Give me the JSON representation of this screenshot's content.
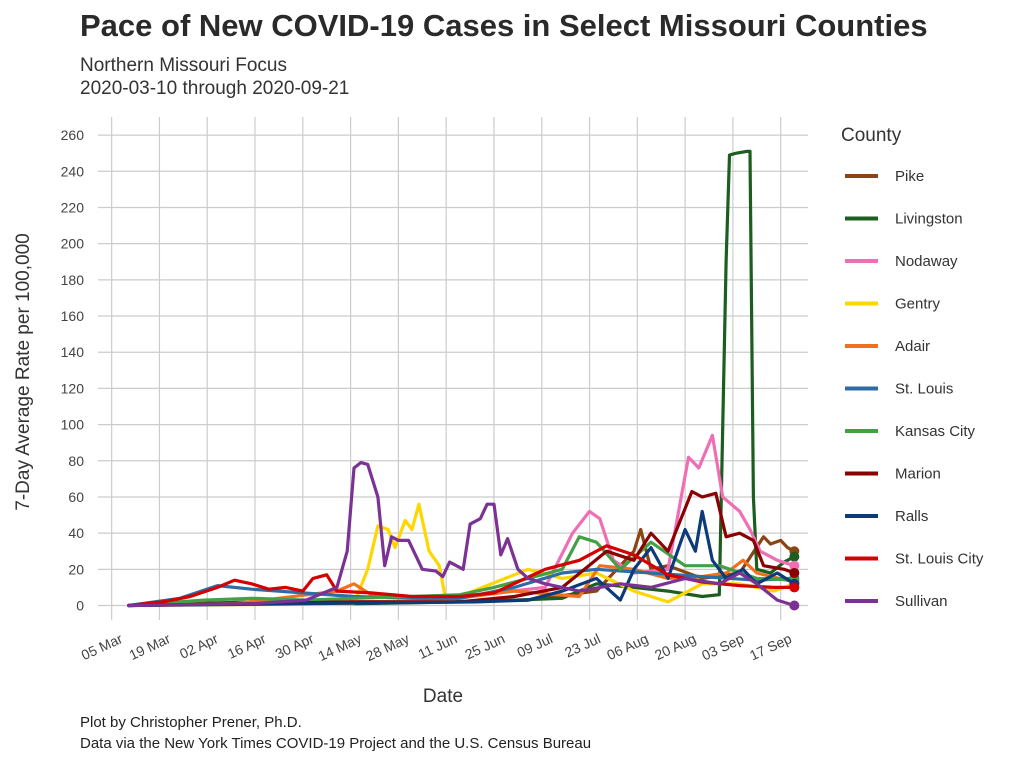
{
  "title": "Pace of New COVID-19 Cases in Select Missouri Counties",
  "subtitle": [
    "Northern Missouri Focus",
    "2020-03-10 through 2020-09-21"
  ],
  "caption": [
    "Plot by Christopher Prener, Ph.D.",
    "Data via the New York Times COVID-19 Project and the U.S. Census Bureau"
  ],
  "chart_data": {
    "type": "line",
    "xlabel": "Date",
    "ylabel": "7-Day Average Rate per 100,000",
    "xlim": [
      "2020-03-01",
      "2020-09-25"
    ],
    "ylim": [
      -8,
      270
    ],
    "yticks": [
      0,
      20,
      40,
      60,
      80,
      100,
      120,
      140,
      160,
      180,
      200,
      220,
      240,
      260
    ],
    "xticks": [
      {
        "date": "2020-03-05",
        "label": "05 Mar"
      },
      {
        "date": "2020-03-19",
        "label": "19 Mar"
      },
      {
        "date": "2020-04-02",
        "label": "02 Apr"
      },
      {
        "date": "2020-04-16",
        "label": "16 Apr"
      },
      {
        "date": "2020-04-30",
        "label": "30 Apr"
      },
      {
        "date": "2020-05-14",
        "label": "14 May"
      },
      {
        "date": "2020-05-28",
        "label": "28 May"
      },
      {
        "date": "2020-06-11",
        "label": "11 Jun"
      },
      {
        "date": "2020-06-25",
        "label": "25 Jun"
      },
      {
        "date": "2020-07-09",
        "label": "09 Jul"
      },
      {
        "date": "2020-07-23",
        "label": "23 Jul"
      },
      {
        "date": "2020-08-06",
        "label": "06 Aug"
      },
      {
        "date": "2020-08-20",
        "label": "20 Aug"
      },
      {
        "date": "2020-09-03",
        "label": "03 Sep"
      },
      {
        "date": "2020-09-17",
        "label": "17 Sep"
      }
    ],
    "grid": true,
    "legend": {
      "title": "County",
      "position": "right"
    },
    "series": [
      {
        "name": "Pike",
        "color": "#8B4513",
        "points": [
          [
            "2020-03-10",
            0
          ],
          [
            "2020-04-10",
            1
          ],
          [
            "2020-05-10",
            2
          ],
          [
            "2020-06-10",
            2
          ],
          [
            "2020-07-05",
            3
          ],
          [
            "2020-07-25",
            8
          ],
          [
            "2020-08-05",
            30
          ],
          [
            "2020-08-07",
            42
          ],
          [
            "2020-08-10",
            20
          ],
          [
            "2020-08-15",
            22
          ],
          [
            "2020-08-25",
            15
          ],
          [
            "2020-09-05",
            18
          ],
          [
            "2020-09-12",
            38
          ],
          [
            "2020-09-14",
            34
          ],
          [
            "2020-09-17",
            36
          ],
          [
            "2020-09-19",
            32
          ],
          [
            "2020-09-21",
            30
          ]
        ]
      },
      {
        "name": "Livingston",
        "color": "#1B5E20",
        "points": [
          [
            "2020-03-10",
            0
          ],
          [
            "2020-04-15",
            2
          ],
          [
            "2020-05-15",
            1
          ],
          [
            "2020-06-15",
            2
          ],
          [
            "2020-07-01",
            3
          ],
          [
            "2020-07-15",
            4
          ],
          [
            "2020-07-25",
            12
          ],
          [
            "2020-08-05",
            10
          ],
          [
            "2020-08-15",
            8
          ],
          [
            "2020-08-25",
            5
          ],
          [
            "2020-08-30",
            6
          ],
          [
            "2020-09-01",
            190
          ],
          [
            "2020-09-02",
            249
          ],
          [
            "2020-09-04",
            250
          ],
          [
            "2020-09-07",
            251
          ],
          [
            "2020-09-08",
            251
          ],
          [
            "2020-09-09",
            60
          ],
          [
            "2020-09-10",
            20
          ],
          [
            "2020-09-14",
            18
          ],
          [
            "2020-09-18",
            24
          ],
          [
            "2020-09-21",
            27
          ]
        ]
      },
      {
        "name": "Nodaway",
        "color": "#F06EB4",
        "points": [
          [
            "2020-03-10",
            0
          ],
          [
            "2020-04-20",
            1
          ],
          [
            "2020-06-01",
            2
          ],
          [
            "2020-07-10",
            10
          ],
          [
            "2020-07-18",
            40
          ],
          [
            "2020-07-23",
            52
          ],
          [
            "2020-07-26",
            48
          ],
          [
            "2020-07-30",
            25
          ],
          [
            "2020-08-05",
            18
          ],
          [
            "2020-08-15",
            20
          ],
          [
            "2020-08-21",
            82
          ],
          [
            "2020-08-24",
            76
          ],
          [
            "2020-08-28",
            94
          ],
          [
            "2020-08-31",
            60
          ],
          [
            "2020-09-05",
            52
          ],
          [
            "2020-09-08",
            42
          ],
          [
            "2020-09-11",
            30
          ],
          [
            "2020-09-16",
            25
          ],
          [
            "2020-09-21",
            22
          ]
        ]
      },
      {
        "name": "Gentry",
        "color": "#FFD600",
        "points": [
          [
            "2020-03-10",
            0
          ],
          [
            "2020-05-15",
            1
          ],
          [
            "2020-05-19",
            20
          ],
          [
            "2020-05-22",
            44
          ],
          [
            "2020-05-25",
            42
          ],
          [
            "2020-05-27",
            32
          ],
          [
            "2020-05-30",
            47
          ],
          [
            "2020-06-01",
            42
          ],
          [
            "2020-06-03",
            56
          ],
          [
            "2020-06-06",
            30
          ],
          [
            "2020-06-09",
            22
          ],
          [
            "2020-06-11",
            2
          ],
          [
            "2020-07-05",
            20
          ],
          [
            "2020-07-15",
            15
          ],
          [
            "2020-07-25",
            18
          ],
          [
            "2020-08-05",
            8
          ],
          [
            "2020-08-15",
            2
          ],
          [
            "2020-08-25",
            12
          ],
          [
            "2020-09-05",
            12
          ],
          [
            "2020-09-15",
            8
          ],
          [
            "2020-09-21",
            12
          ]
        ]
      },
      {
        "name": "Adair",
        "color": "#F07020",
        "points": [
          [
            "2020-03-10",
            0
          ],
          [
            "2020-04-10",
            1
          ],
          [
            "2020-05-10",
            8
          ],
          [
            "2020-05-15",
            12
          ],
          [
            "2020-05-20",
            6
          ],
          [
            "2020-06-10",
            3
          ],
          [
            "2020-07-01",
            8
          ],
          [
            "2020-07-20",
            5
          ],
          [
            "2020-07-26",
            22
          ],
          [
            "2020-08-05",
            20
          ],
          [
            "2020-08-15",
            15
          ],
          [
            "2020-08-25",
            16
          ],
          [
            "2020-09-01",
            18
          ],
          [
            "2020-09-06",
            25
          ],
          [
            "2020-09-10",
            18
          ],
          [
            "2020-09-21",
            13
          ]
        ]
      },
      {
        "name": "St. Louis",
        "color": "#2E6DA4",
        "points": [
          [
            "2020-03-10",
            0
          ],
          [
            "2020-03-25",
            4
          ],
          [
            "2020-04-05",
            11
          ],
          [
            "2020-04-15",
            9
          ],
          [
            "2020-04-30",
            7
          ],
          [
            "2020-05-15",
            5
          ],
          [
            "2020-06-01",
            4
          ],
          [
            "2020-06-15",
            4
          ],
          [
            "2020-07-01",
            10
          ],
          [
            "2020-07-15",
            18
          ],
          [
            "2020-07-25",
            20
          ],
          [
            "2020-08-10",
            18
          ],
          [
            "2020-08-25",
            16
          ],
          [
            "2020-09-10",
            14
          ],
          [
            "2020-09-21",
            15
          ]
        ]
      },
      {
        "name": "Kansas City",
        "color": "#43A047",
        "points": [
          [
            "2020-03-10",
            0
          ],
          [
            "2020-04-01",
            3
          ],
          [
            "2020-04-15",
            4
          ],
          [
            "2020-05-01",
            3
          ],
          [
            "2020-05-15",
            4
          ],
          [
            "2020-06-01",
            5
          ],
          [
            "2020-06-15",
            6
          ],
          [
            "2020-06-25",
            10
          ],
          [
            "2020-07-05",
            15
          ],
          [
            "2020-07-15",
            20
          ],
          [
            "2020-07-20",
            38
          ],
          [
            "2020-07-25",
            35
          ],
          [
            "2020-08-01",
            20
          ],
          [
            "2020-08-10",
            35
          ],
          [
            "2020-08-20",
            22
          ],
          [
            "2020-08-30",
            22
          ],
          [
            "2020-09-10",
            15
          ],
          [
            "2020-09-21",
            14
          ]
        ]
      },
      {
        "name": "Marion",
        "color": "#8B0000",
        "points": [
          [
            "2020-03-10",
            0
          ],
          [
            "2020-04-15",
            1
          ],
          [
            "2020-05-15",
            2
          ],
          [
            "2020-06-15",
            2
          ],
          [
            "2020-07-01",
            5
          ],
          [
            "2020-07-15",
            10
          ],
          [
            "2020-07-28",
            30
          ],
          [
            "2020-08-05",
            25
          ],
          [
            "2020-08-10",
            40
          ],
          [
            "2020-08-15",
            30
          ],
          [
            "2020-08-22",
            63
          ],
          [
            "2020-08-25",
            60
          ],
          [
            "2020-08-29",
            62
          ],
          [
            "2020-09-01",
            38
          ],
          [
            "2020-09-05",
            40
          ],
          [
            "2020-09-09",
            36
          ],
          [
            "2020-09-12",
            22
          ],
          [
            "2020-09-18",
            20
          ],
          [
            "2020-09-21",
            18
          ]
        ]
      },
      {
        "name": "Ralls",
        "color": "#0D3B7A",
        "points": [
          [
            "2020-03-10",
            0
          ],
          [
            "2020-05-01",
            1
          ],
          [
            "2020-06-20",
            2
          ],
          [
            "2020-07-05",
            3
          ],
          [
            "2020-07-15",
            8
          ],
          [
            "2020-07-25",
            15
          ],
          [
            "2020-08-01",
            3
          ],
          [
            "2020-08-05",
            20
          ],
          [
            "2020-08-10",
            32
          ],
          [
            "2020-08-15",
            15
          ],
          [
            "2020-08-20",
            42
          ],
          [
            "2020-08-23",
            30
          ],
          [
            "2020-08-25",
            52
          ],
          [
            "2020-08-28",
            25
          ],
          [
            "2020-09-01",
            15
          ],
          [
            "2020-09-06",
            20
          ],
          [
            "2020-09-10",
            12
          ],
          [
            "2020-09-16",
            18
          ],
          [
            "2020-09-21",
            12
          ]
        ]
      },
      {
        "name": "St. Louis City",
        "color": "#D50000",
        "points": [
          [
            "2020-03-10",
            0
          ],
          [
            "2020-03-20",
            2
          ],
          [
            "2020-03-28",
            5
          ],
          [
            "2020-04-05",
            10
          ],
          [
            "2020-04-10",
            14
          ],
          [
            "2020-04-15",
            12
          ],
          [
            "2020-04-20",
            9
          ],
          [
            "2020-04-25",
            10
          ],
          [
            "2020-04-30",
            8
          ],
          [
            "2020-05-03",
            15
          ],
          [
            "2020-05-07",
            17
          ],
          [
            "2020-05-10",
            8
          ],
          [
            "2020-05-20",
            7
          ],
          [
            "2020-06-01",
            5
          ],
          [
            "2020-06-15",
            5
          ],
          [
            "2020-06-25",
            7
          ],
          [
            "2020-07-10",
            20
          ],
          [
            "2020-07-20",
            25
          ],
          [
            "2020-07-28",
            33
          ],
          [
            "2020-08-05",
            28
          ],
          [
            "2020-08-15",
            17
          ],
          [
            "2020-08-25",
            13
          ],
          [
            "2020-09-05",
            11
          ],
          [
            "2020-09-15",
            10
          ],
          [
            "2020-09-21",
            10
          ]
        ]
      },
      {
        "name": "Sullivan",
        "color": "#7B3294",
        "points": [
          [
            "2020-03-10",
            0
          ],
          [
            "2020-04-15",
            1
          ],
          [
            "2020-05-01",
            3
          ],
          [
            "2020-05-10",
            10
          ],
          [
            "2020-05-13",
            30
          ],
          [
            "2020-05-15",
            76
          ],
          [
            "2020-05-17",
            79
          ],
          [
            "2020-05-19",
            78
          ],
          [
            "2020-05-22",
            60
          ],
          [
            "2020-05-24",
            22
          ],
          [
            "2020-05-26",
            38
          ],
          [
            "2020-05-28",
            36
          ],
          [
            "2020-05-31",
            36
          ],
          [
            "2020-06-04",
            20
          ],
          [
            "2020-06-08",
            19
          ],
          [
            "2020-06-10",
            16
          ],
          [
            "2020-06-12",
            24
          ],
          [
            "2020-06-16",
            20
          ],
          [
            "2020-06-18",
            45
          ],
          [
            "2020-06-21",
            48
          ],
          [
            "2020-06-23",
            56
          ],
          [
            "2020-06-25",
            56
          ],
          [
            "2020-06-27",
            28
          ],
          [
            "2020-06-29",
            37
          ],
          [
            "2020-07-02",
            20
          ],
          [
            "2020-07-05",
            15
          ],
          [
            "2020-07-10",
            12
          ],
          [
            "2020-07-20",
            8
          ],
          [
            "2020-08-01",
            12
          ],
          [
            "2020-08-10",
            10
          ],
          [
            "2020-08-20",
            15
          ],
          [
            "2020-08-30",
            12
          ],
          [
            "2020-09-05",
            18
          ],
          [
            "2020-09-10",
            12
          ],
          [
            "2020-09-16",
            3
          ],
          [
            "2020-09-21",
            0
          ]
        ]
      }
    ]
  }
}
